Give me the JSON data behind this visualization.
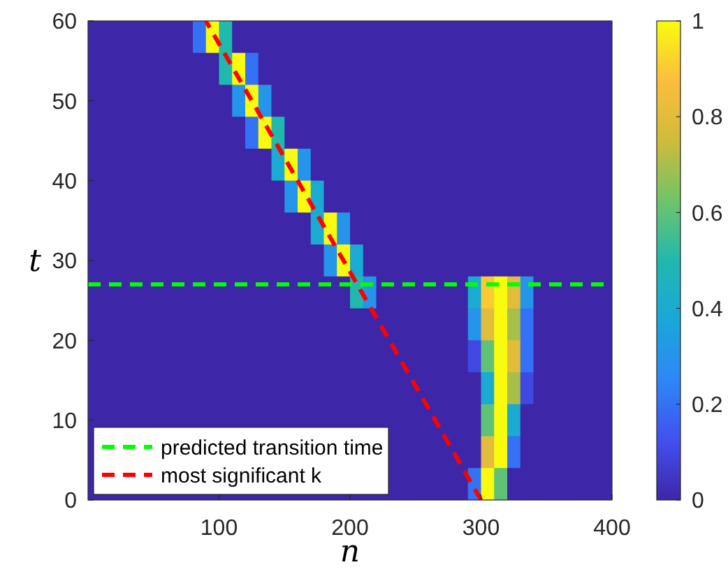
{
  "chart_data": {
    "type": "heatmap",
    "xlabel": "n",
    "ylabel": "t",
    "xlim": [
      0,
      400
    ],
    "xticks": [
      100,
      200,
      300,
      400
    ],
    "ylim": [
      0,
      60
    ],
    "yticks": [
      0,
      10,
      20,
      30,
      40,
      50,
      60
    ],
    "clim": [
      0,
      1
    ],
    "cticks": [
      0,
      0.2,
      0.4,
      0.6,
      0.8,
      1
    ],
    "cells": [
      [
        0,
        0,
        0,
        0,
        0,
        0,
        0,
        0,
        0.2,
        1,
        0.5,
        0,
        0,
        0,
        0,
        0,
        0,
        0,
        0,
        0,
        0,
        0,
        0,
        0,
        0,
        0,
        0,
        0,
        0,
        0,
        0,
        0,
        0,
        0,
        0,
        0,
        0,
        0,
        0,
        0
      ],
      [
        0,
        0,
        0,
        0,
        0,
        0,
        0,
        0,
        0,
        0,
        0.5,
        1,
        0.2,
        0,
        0,
        0,
        0,
        0,
        0,
        0,
        0,
        0,
        0,
        0,
        0,
        0,
        0,
        0,
        0,
        0,
        0,
        0,
        0,
        0,
        0,
        0,
        0,
        0,
        0,
        0
      ],
      [
        0,
        0,
        0,
        0,
        0,
        0,
        0,
        0,
        0,
        0,
        0,
        0.3,
        1,
        0.3,
        0,
        0,
        0,
        0,
        0,
        0,
        0,
        0,
        0,
        0,
        0,
        0,
        0,
        0,
        0,
        0,
        0,
        0,
        0,
        0,
        0,
        0,
        0,
        0,
        0,
        0
      ],
      [
        0,
        0,
        0,
        0,
        0,
        0,
        0,
        0,
        0,
        0,
        0,
        0,
        0.2,
        1,
        0.5,
        0,
        0,
        0,
        0,
        0,
        0,
        0,
        0,
        0,
        0,
        0,
        0,
        0,
        0,
        0,
        0,
        0,
        0,
        0,
        0,
        0,
        0,
        0,
        0,
        0
      ],
      [
        0,
        0,
        0,
        0,
        0,
        0,
        0,
        0,
        0,
        0,
        0,
        0,
        0,
        0,
        0.4,
        1,
        0.3,
        0,
        0,
        0,
        0,
        0,
        0,
        0,
        0,
        0,
        0,
        0,
        0,
        0,
        0,
        0,
        0,
        0,
        0,
        0,
        0,
        0,
        0,
        0
      ],
      [
        0,
        0,
        0,
        0,
        0,
        0,
        0,
        0,
        0,
        0,
        0,
        0,
        0,
        0,
        0,
        0.3,
        1,
        0.4,
        0,
        0,
        0,
        0,
        0,
        0,
        0,
        0,
        0,
        0,
        0,
        0,
        0,
        0,
        0,
        0,
        0,
        0,
        0,
        0,
        0,
        0
      ],
      [
        0,
        0,
        0,
        0,
        0,
        0,
        0,
        0,
        0,
        0,
        0,
        0,
        0,
        0,
        0,
        0,
        0,
        0.4,
        1,
        0.3,
        0,
        0,
        0,
        0,
        0,
        0,
        0,
        0,
        0,
        0,
        0,
        0,
        0,
        0,
        0,
        0,
        0,
        0,
        0,
        0
      ],
      [
        0,
        0,
        0,
        0,
        0,
        0,
        0,
        0,
        0,
        0,
        0,
        0,
        0,
        0,
        0,
        0,
        0,
        0,
        0.3,
        1,
        0.4,
        0,
        0,
        0,
        0,
        0,
        0,
        0,
        0,
        0,
        0,
        0,
        0,
        0,
        0,
        0,
        0,
        0,
        0,
        0
      ],
      [
        0,
        0,
        0,
        0,
        0,
        0,
        0,
        0,
        0,
        0,
        0,
        0,
        0,
        0,
        0,
        0,
        0,
        0,
        0,
        0,
        0.5,
        0.3,
        0,
        0,
        0,
        0,
        0,
        0,
        0,
        0.4,
        0.9,
        1,
        0.8,
        0.3,
        0,
        0,
        0,
        0,
        0,
        0
      ],
      [
        0,
        0,
        0,
        0,
        0,
        0,
        0,
        0,
        0,
        0,
        0,
        0,
        0,
        0,
        0,
        0,
        0,
        0,
        0,
        0,
        0,
        0,
        0,
        0,
        0,
        0,
        0,
        0,
        0,
        0.3,
        0.8,
        1,
        0.7,
        0.2,
        0,
        0,
        0,
        0,
        0,
        0
      ],
      [
        0,
        0,
        0,
        0,
        0,
        0,
        0,
        0,
        0,
        0,
        0,
        0,
        0,
        0,
        0,
        0,
        0,
        0,
        0,
        0,
        0,
        0,
        0,
        0,
        0,
        0,
        0,
        0,
        0,
        0.1,
        0.6,
        1,
        0.8,
        0.2,
        0,
        0,
        0,
        0,
        0,
        0
      ],
      [
        0,
        0,
        0,
        0,
        0,
        0,
        0,
        0,
        0,
        0,
        0,
        0,
        0,
        0,
        0,
        0,
        0,
        0,
        0,
        0,
        0,
        0,
        0,
        0,
        0,
        0,
        0,
        0,
        0,
        0,
        0.4,
        1,
        0.7,
        0.1,
        0,
        0,
        0,
        0,
        0,
        0
      ],
      [
        0,
        0,
        0,
        0,
        0,
        0,
        0,
        0,
        0,
        0,
        0,
        0,
        0,
        0,
        0,
        0,
        0,
        0,
        0,
        0,
        0,
        0,
        0,
        0,
        0,
        0,
        0,
        0,
        0,
        0,
        0.6,
        1,
        0.4,
        0,
        0,
        0,
        0,
        0,
        0,
        0
      ],
      [
        null,
        null,
        null,
        null,
        null,
        null,
        null,
        null,
        null,
        null,
        null,
        null,
        null,
        null,
        null,
        null,
        null,
        null,
        null,
        null,
        null,
        null,
        null,
        0,
        0,
        0,
        0,
        0,
        0,
        0,
        0.8,
        1,
        0.2,
        0,
        0,
        0,
        0,
        0,
        0,
        0
      ],
      [
        null,
        null,
        null,
        null,
        null,
        null,
        null,
        null,
        null,
        null,
        null,
        null,
        null,
        null,
        null,
        null,
        null,
        null,
        null,
        null,
        null,
        null,
        null,
        0,
        0,
        0,
        0,
        0,
        0,
        0.2,
        1,
        0.6,
        0,
        0,
        0,
        0,
        0,
        0,
        0,
        0
      ]
    ],
    "series": [
      {
        "type": "line",
        "name": "predicted transition time",
        "color": "#00ff00",
        "x": [
          0,
          400
        ],
        "values": [
          27,
          27
        ]
      },
      {
        "type": "line",
        "name": "most significant k",
        "color": "#ff0000",
        "x": [
          300,
          90
        ],
        "values": [
          0,
          60
        ]
      }
    ],
    "line_style": "dashed",
    "legend": "bottom left"
  }
}
